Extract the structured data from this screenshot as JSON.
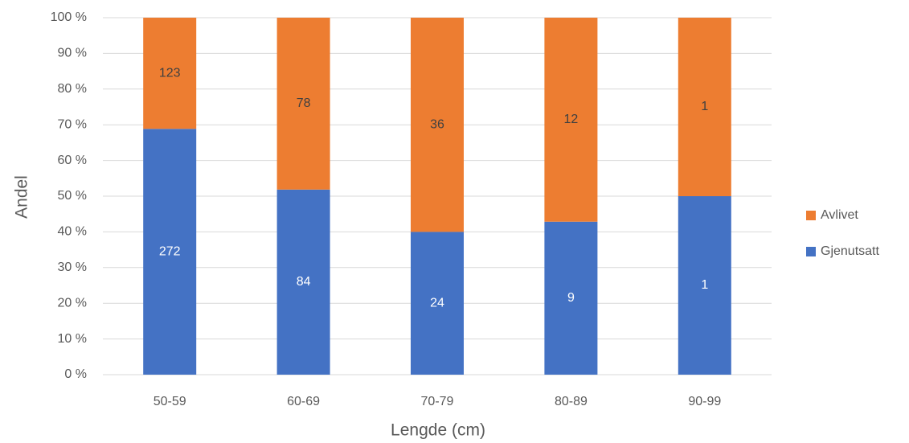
{
  "chart_data": {
    "type": "bar",
    "stacking": "percent",
    "x_label": "Lengde (cm)",
    "y_label": "Andel",
    "categories": [
      "50-59",
      "60-69",
      "70-79",
      "80-89",
      "90-99"
    ],
    "series": [
      {
        "name": "Gjenutsatt",
        "color": "#4472c4",
        "label_color": "#ffffff",
        "values": [
          272,
          84,
          24,
          9,
          1
        ]
      },
      {
        "name": "Avlivet",
        "color": "#ed7d31",
        "label_color": "#404040",
        "values": [
          123,
          78,
          36,
          12,
          1
        ]
      }
    ],
    "ylim": [
      0,
      100
    ],
    "yticks": [
      {
        "value": 0,
        "label": "0 %"
      },
      {
        "value": 10,
        "label": "10 %"
      },
      {
        "value": 20,
        "label": "20 %"
      },
      {
        "value": 30,
        "label": "30 %"
      },
      {
        "value": 40,
        "label": "40 %"
      },
      {
        "value": 50,
        "label": "50 %"
      },
      {
        "value": 60,
        "label": "60 %"
      },
      {
        "value": 70,
        "label": "70 %"
      },
      {
        "value": 80,
        "label": "80 %"
      },
      {
        "value": 90,
        "label": "90 %"
      },
      {
        "value": 100,
        "label": "100 %"
      }
    ],
    "grid": true,
    "legend": "right"
  }
}
